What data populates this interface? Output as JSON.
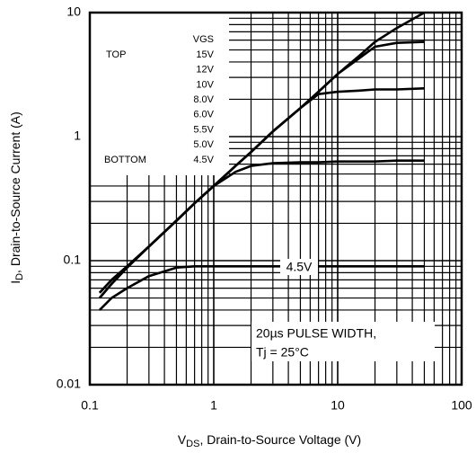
{
  "chart_data": {
    "type": "line",
    "xlabel": {
      "main": "V",
      "sub": "DS",
      "rest": ", Drain-to-Source Voltage (V)"
    },
    "ylabel": {
      "main": "I",
      "sub": "D",
      "rest": ", Drain-to-Source Current (A)"
    },
    "log_x": true,
    "log_y": true,
    "grid": true,
    "xlim": [
      0.1,
      100
    ],
    "ylim": [
      0.01,
      10
    ],
    "xticks": [
      0.1,
      1,
      10,
      100
    ],
    "yticks": [
      0.01,
      0.1,
      1,
      10
    ],
    "xminorticks": [
      0.2,
      0.3,
      0.4,
      0.5,
      0.6,
      0.7,
      0.8,
      0.9,
      2,
      3,
      4,
      5,
      6,
      7,
      8,
      9,
      20,
      30,
      40,
      50,
      60,
      70,
      80,
      90
    ],
    "yminorticks": [
      0.02,
      0.03,
      0.04,
      0.05,
      0.06,
      0.07,
      0.08,
      0.09,
      0.2,
      0.3,
      0.4,
      0.5,
      0.6,
      0.7,
      0.8,
      0.9,
      2,
      3,
      4,
      5,
      6,
      7,
      8,
      9
    ],
    "x": [
      0.12,
      0.15,
      0.2,
      0.3,
      0.5,
      0.7,
      1,
      1.5,
      2,
      3,
      5,
      7,
      10,
      15,
      20,
      30,
      50
    ],
    "series": [
      {
        "color": "#000000",
        "values": [
          0.055,
          0.07,
          0.09,
          0.13,
          0.21,
          0.29,
          0.4,
          0.58,
          0.75,
          1.1,
          1.7,
          2.3,
          3.2,
          4.5,
          5.8,
          7.5,
          10
        ]
      },
      {
        "color": "#000000",
        "values": [
          0.055,
          0.07,
          0.09,
          0.13,
          0.21,
          0.29,
          0.4,
          0.58,
          0.75,
          1.1,
          1.7,
          2.3,
          3.2,
          4.3,
          5.3,
          5.7,
          5.8
        ]
      },
      {
        "color": "#000000",
        "values": [
          0.05,
          0.065,
          0.088,
          0.13,
          0.21,
          0.29,
          0.4,
          0.58,
          0.75,
          1.1,
          1.7,
          2.2,
          2.3,
          2.35,
          2.4,
          2.4,
          2.45
        ]
      },
      {
        "color": "#000000",
        "values": [
          0.05,
          0.065,
          0.088,
          0.13,
          0.21,
          0.29,
          0.4,
          0.52,
          0.58,
          0.61,
          0.62,
          0.62,
          0.63,
          0.63,
          0.63,
          0.64,
          0.64
        ]
      },
      {
        "color": "#000000",
        "values": [
          0.04,
          0.05,
          0.06,
          0.075,
          0.088,
          0.09,
          0.09,
          0.09,
          0.09,
          0.09,
          0.09,
          0.09,
          0.09,
          0.09,
          0.09,
          0.09,
          0.09
        ]
      }
    ],
    "legend": {
      "title": "VGS",
      "top": "TOP",
      "bottom": "BOTTOM",
      "entries": [
        "15V",
        "12V",
        "10V",
        "8.0V",
        "6.0V",
        "5.5V",
        "5.0V",
        "4.5V"
      ]
    },
    "annotations": {
      "curve_label": "4.5V",
      "pulse": "20µs PULSE WIDTH,",
      "tj": "Tj = 25°C"
    }
  }
}
